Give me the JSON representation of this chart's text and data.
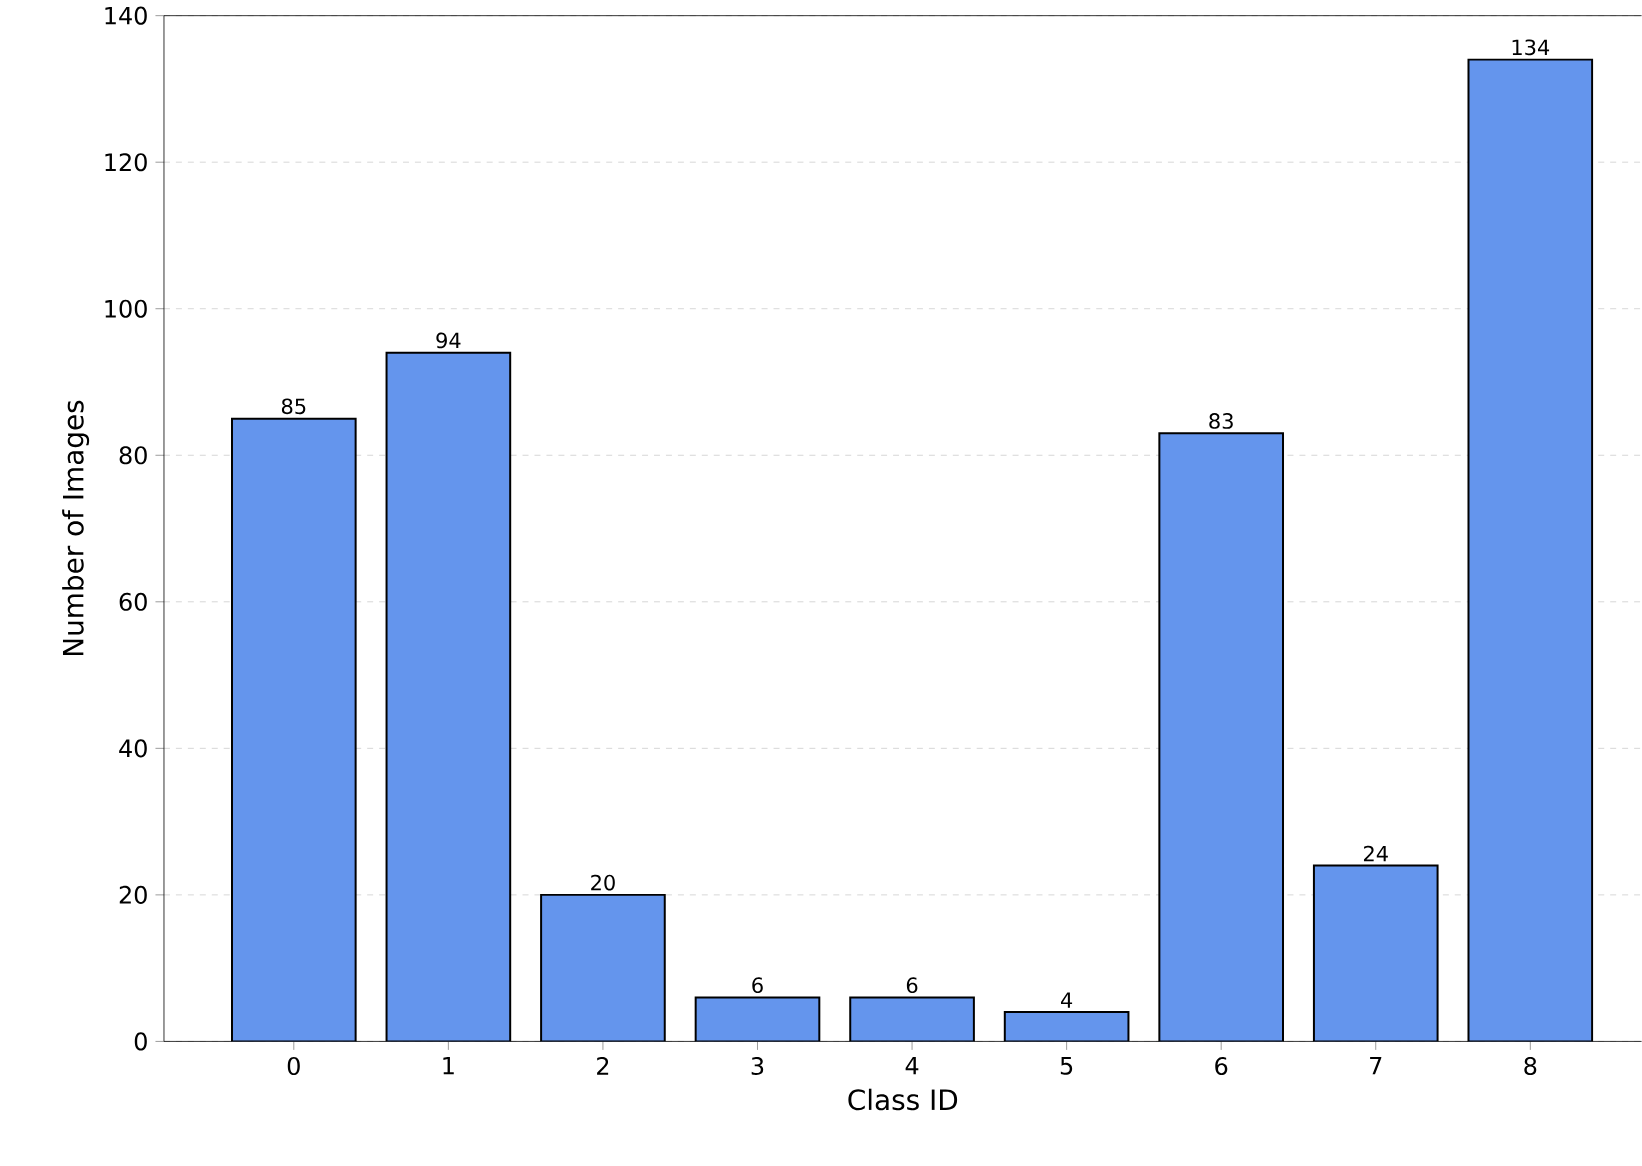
{
  "chart_data": {
    "type": "bar",
    "xlabel": "Class ID",
    "ylabel": "Number of Images",
    "categories": [
      "0",
      "1",
      "2",
      "3",
      "4",
      "5",
      "6",
      "7",
      "8"
    ],
    "values": [
      85,
      94,
      20,
      6,
      6,
      4,
      83,
      24,
      134
    ],
    "color": "#6495ed",
    "ylim": [
      0,
      140
    ],
    "yticks": [
      0,
      20,
      40,
      60,
      80,
      100,
      120,
      140
    ],
    "grid": "y",
    "data_labels": true
  }
}
